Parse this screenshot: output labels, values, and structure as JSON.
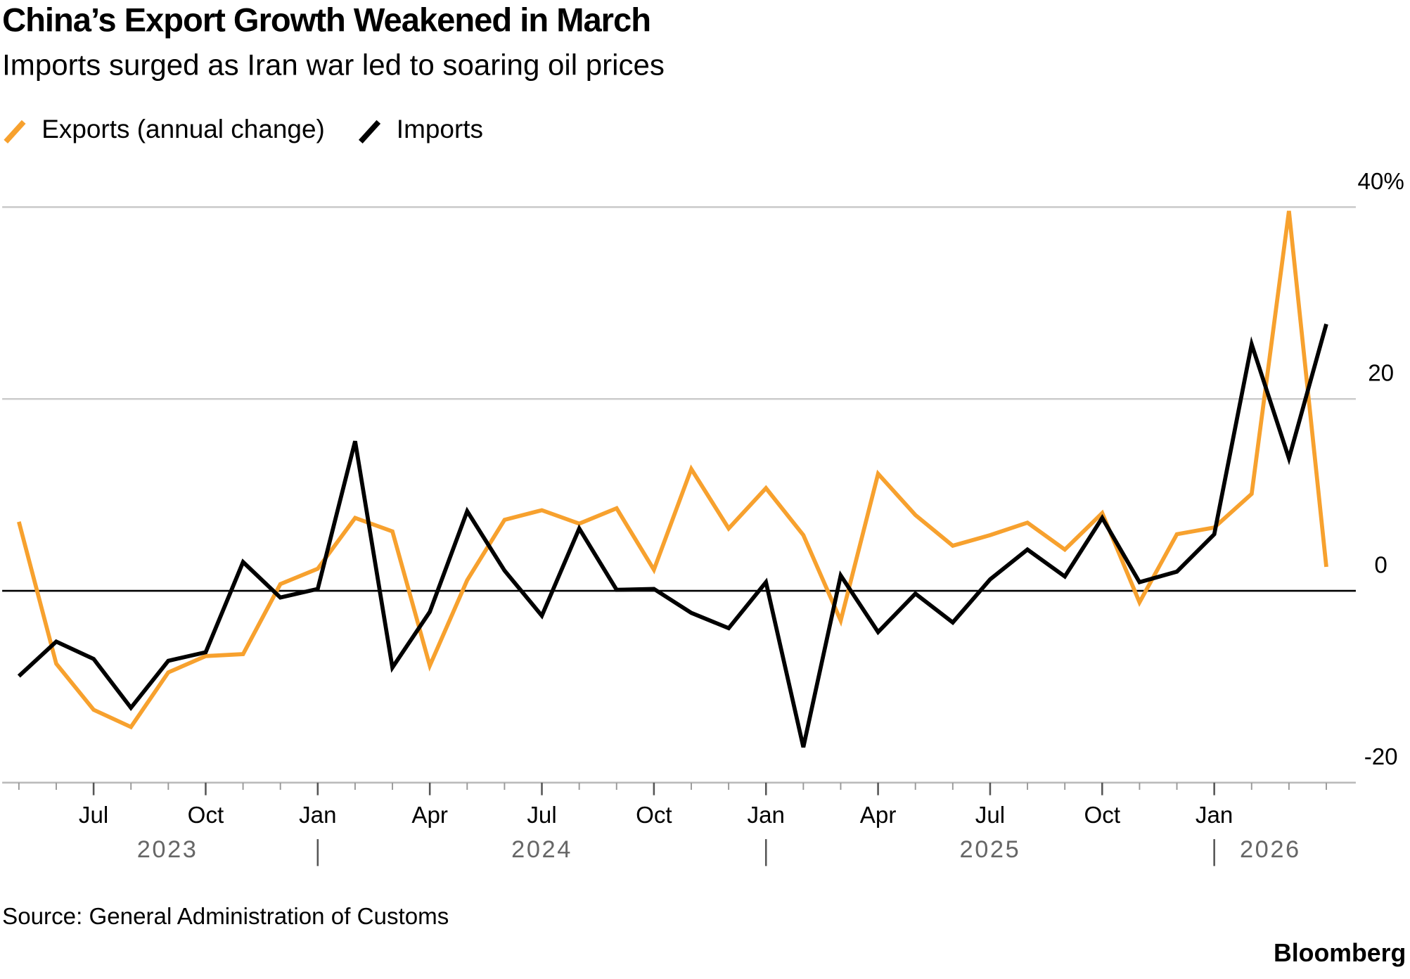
{
  "chart_data": {
    "type": "line",
    "title": "China’s Export Growth Weakened in March",
    "subtitle": "Imports surged as Iran war led to soaring oil prices",
    "source": "Source: General Administration of Customs",
    "brand": "Bloomberg",
    "x": [
      "2023-04",
      "2023-05",
      "2023-06",
      "2023-07",
      "2023-08",
      "2023-09",
      "2023-10",
      "2023-11",
      "2023-12",
      "2024-01",
      "2024-02",
      "2024-03",
      "2024-04",
      "2024-05",
      "2024-06",
      "2024-07",
      "2024-08",
      "2024-09",
      "2024-10",
      "2024-11",
      "2024-12",
      "2025-01",
      "2025-02",
      "2025-03",
      "2025-04",
      "2025-05",
      "2025-06",
      "2025-07",
      "2025-08",
      "2025-09",
      "2025-10",
      "2025-11",
      "2025-12",
      "2026-01",
      "2026-02",
      "2026-03"
    ],
    "series": [
      {
        "name": "Exports (annual change)",
        "color": "#f7a12e",
        "values": [
          7.2,
          -7.6,
          -12.4,
          -14.2,
          -8.5,
          -6.8,
          -6.6,
          0.7,
          2.3,
          7.6,
          6.2,
          -7.8,
          1.1,
          7.4,
          8.4,
          7.0,
          8.6,
          2.2,
          12.7,
          6.5,
          10.7,
          5.8,
          -3.1,
          12.2,
          7.9,
          4.7,
          5.8,
          7.1,
          4.3,
          8.1,
          -1.2,
          5.9,
          6.6,
          10.1,
          39.6,
          2.5
        ]
      },
      {
        "name": "Imports",
        "color": "#000000",
        "values": [
          -8.9,
          -5.3,
          -7.1,
          -12.2,
          -7.3,
          -6.4,
          3.0,
          -0.7,
          0.2,
          15.6,
          -8.0,
          -2.2,
          8.3,
          2.1,
          -2.6,
          6.5,
          0.1,
          0.2,
          -2.3,
          -3.9,
          0.9,
          -16.3,
          1.6,
          -4.3,
          -0.3,
          -3.3,
          1.2,
          4.3,
          1.5,
          7.6,
          0.9,
          2.0,
          5.9,
          25.7,
          13.8,
          27.8
        ]
      }
    ],
    "ylim": [
      -20,
      40
    ],
    "yticks": [
      -20,
      0,
      20,
      {
        "value": 40,
        "label": "40%"
      }
    ],
    "xticks": [
      {
        "value": "2023-07",
        "label": "Jul"
      },
      {
        "value": "2023-10",
        "label": "Oct"
      },
      {
        "value": "2024-01",
        "label": "Jan"
      },
      {
        "value": "2024-04",
        "label": "Apr"
      },
      {
        "value": "2024-07",
        "label": "Jul"
      },
      {
        "value": "2024-10",
        "label": "Oct"
      },
      {
        "value": "2025-01",
        "label": "Jan"
      },
      {
        "value": "2025-04",
        "label": "Apr"
      },
      {
        "value": "2025-07",
        "label": "Jul"
      },
      {
        "value": "2025-10",
        "label": "Oct"
      },
      {
        "value": "2026-01",
        "label": "Jan"
      }
    ],
    "year_labels": [
      "2023",
      "2024",
      "2025",
      "2026"
    ],
    "grid": true
  }
}
